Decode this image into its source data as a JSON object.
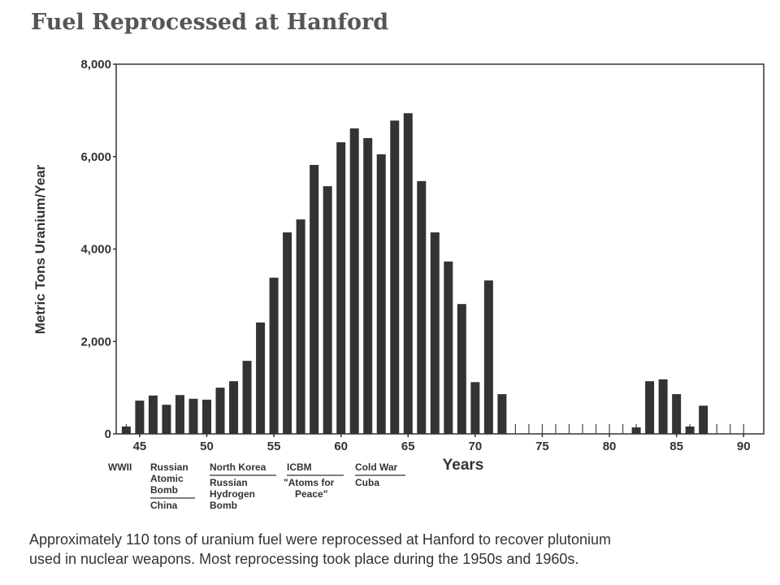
{
  "chart_data": {
    "type": "bar",
    "title": "Fuel Reprocessed at Hanford",
    "ylabel": "Metric Tons Uranium/Year",
    "xlabel": "Years",
    "color": "#333333",
    "x": [
      44,
      45,
      46,
      47,
      48,
      49,
      50,
      51,
      52,
      53,
      54,
      55,
      56,
      57,
      58,
      59,
      60,
      61,
      62,
      63,
      64,
      65,
      66,
      67,
      68,
      69,
      70,
      71,
      72,
      73,
      74,
      75,
      76,
      77,
      78,
      79,
      80,
      81,
      82,
      83,
      84,
      85,
      86,
      87,
      88,
      89,
      90
    ],
    "values": [
      160,
      720,
      830,
      630,
      840,
      760,
      740,
      1000,
      1140,
      1580,
      2410,
      3380,
      4360,
      4640,
      5820,
      5360,
      6310,
      6610,
      6400,
      6050,
      6780,
      6940,
      5470,
      4360,
      3730,
      2810,
      1120,
      3320,
      860,
      0,
      0,
      0,
      0,
      0,
      0,
      0,
      0,
      0,
      140,
      1140,
      1180,
      860,
      160,
      610,
      0,
      0,
      0
    ],
    "xlim": [
      43.25,
      91.5
    ],
    "xticks": [
      45,
      50,
      55,
      60,
      65,
      70,
      75,
      80,
      85,
      90
    ],
    "ylim": [
      0,
      8000
    ],
    "yticks": [
      0,
      {
        "value": 2000,
        "label": "2,000"
      },
      {
        "value": 4000,
        "label": "4,000"
      },
      {
        "value": 6000,
        "label": "6,000"
      },
      {
        "value": 8000,
        "label": "8,000"
      }
    ],
    "annotations": [
      {
        "top": [
          "WWII"
        ],
        "bottom": []
      },
      {
        "top": [
          "Russian",
          "Atomic",
          "Bomb"
        ],
        "bottom": [
          "China"
        ]
      },
      {
        "top": [
          "North Korea"
        ],
        "bottom": [
          "Russian",
          "Hydrogen",
          "Bomb"
        ]
      },
      {
        "top": [
          "ICBM"
        ],
        "bottom": [
          "\"Atoms for",
          "Peace\""
        ]
      },
      {
        "top": [
          "Cold War"
        ],
        "bottom": [
          "Cuba"
        ]
      }
    ],
    "caption": [
      "Approximately 110 tons of uranium fuel were reprocessed at Hanford to recover plutonium",
      "used in nuclear weapons. Most reprocessing took place during the 1950s and 1960s."
    ]
  }
}
